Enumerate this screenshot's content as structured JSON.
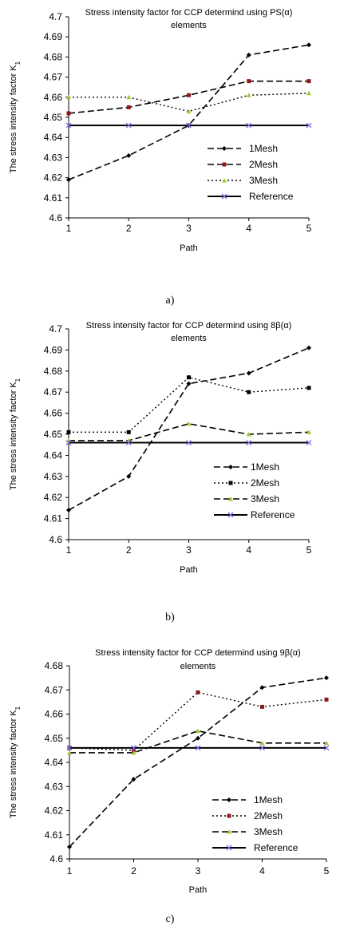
{
  "chart_data": [
    {
      "type": "line",
      "title": [
        "Stress intensity factor for CCP determind using PS(α)",
        "elements"
      ],
      "xlabel": "Path",
      "ylabel": "The stress intensity factor K",
      "ylabel_sub": "1",
      "categories": [
        "1",
        "2",
        "3",
        "4",
        "5"
      ],
      "ylim": [
        4.6,
        4.7
      ],
      "yticks": [
        "4.6",
        "4.61",
        "4.62",
        "4.63",
        "4.64",
        "4.65",
        "4.66",
        "4.67",
        "4.68",
        "4.69",
        "4.7"
      ],
      "legend_position": "bottom-right",
      "grid": false,
      "series": [
        {
          "name": "1Mesh",
          "values": [
            4.619,
            4.631,
            4.646,
            4.681,
            4.686
          ],
          "style": "dashed",
          "width": 1.6,
          "marker": "diamond",
          "color": "#000000",
          "marker_color": "#000000"
        },
        {
          "name": "2Mesh",
          "values": [
            4.652,
            4.655,
            4.661,
            4.668,
            4.668
          ],
          "style": "dashed",
          "width": 1.6,
          "marker": "square",
          "color": "#000000",
          "marker_color": "#8b1a1a"
        },
        {
          "name": "3Mesh",
          "values": [
            4.66,
            4.66,
            4.653,
            4.661,
            4.662
          ],
          "style": "dotted",
          "width": 1.4,
          "marker": "triangle",
          "color": "#000000",
          "marker_color": "#9acd32"
        },
        {
          "name": "Reference",
          "values": [
            4.646,
            4.646,
            4.646,
            4.646,
            4.646
          ],
          "style": "solid",
          "width": 2.0,
          "marker": "x",
          "color": "#000000",
          "marker_color": "#7b68ee"
        }
      ]
    },
    {
      "type": "line",
      "title": [
        "Stress intensity factor for CCP determind using 8β(α)",
        "elements"
      ],
      "xlabel": "Path",
      "ylabel": "The stress intensity factor K",
      "ylabel_sub": "1",
      "categories": [
        "1",
        "2",
        "3",
        "4",
        "5"
      ],
      "ylim": [
        4.6,
        4.7
      ],
      "yticks": [
        "4.6",
        "4.61",
        "4.62",
        "4.63",
        "4.64",
        "4.65",
        "4.66",
        "4.67",
        "4.68",
        "4.69",
        "4.7"
      ],
      "legend_position": "bottom-right",
      "grid": false,
      "series": [
        {
          "name": "1Mesh",
          "values": [
            4.614,
            4.63,
            4.674,
            4.679,
            4.691
          ],
          "style": "dashed",
          "width": 1.6,
          "marker": "diamond",
          "color": "#000000",
          "marker_color": "#000000"
        },
        {
          "name": "2Mesh",
          "values": [
            4.651,
            4.651,
            4.677,
            4.67,
            4.672
          ],
          "style": "dotted",
          "width": 1.4,
          "marker": "square",
          "color": "#000000",
          "marker_color": "#000000"
        },
        {
          "name": "3Mesh",
          "values": [
            4.647,
            4.647,
            4.655,
            4.65,
            4.651
          ],
          "style": "dashed",
          "width": 1.6,
          "marker": "triangle",
          "color": "#000000",
          "marker_color": "#9acd32"
        },
        {
          "name": "Reference",
          "values": [
            4.646,
            4.646,
            4.646,
            4.646,
            4.646
          ],
          "style": "solid",
          "width": 2.0,
          "marker": "x",
          "color": "#000000",
          "marker_color": "#7b68ee"
        }
      ]
    },
    {
      "type": "line",
      "title": [
        "Stress intensity factor for CCP determind using 9β(α)",
        "elements"
      ],
      "xlabel": "Path",
      "ylabel": "The stress intensity factor K",
      "ylabel_sub": "1",
      "categories": [
        "1",
        "2",
        "3",
        "4",
        "5"
      ],
      "ylim": [
        4.6,
        4.68
      ],
      "yticks": [
        "4.6",
        "4.61",
        "4.62",
        "4.63",
        "4.64",
        "4.65",
        "4.66",
        "4.67",
        "4.68"
      ],
      "legend_position": "bottom-right",
      "grid": false,
      "series": [
        {
          "name": "1Mesh",
          "values": [
            4.605,
            4.633,
            4.65,
            4.671,
            4.675
          ],
          "style": "dashed",
          "width": 1.6,
          "marker": "diamond",
          "color": "#000000",
          "marker_color": "#000000"
        },
        {
          "name": "2Mesh",
          "values": [
            4.646,
            4.645,
            4.669,
            4.663,
            4.666
          ],
          "style": "dotted",
          "width": 1.4,
          "marker": "square",
          "color": "#000000",
          "marker_color": "#8b1a1a"
        },
        {
          "name": "3Mesh",
          "values": [
            4.644,
            4.644,
            4.653,
            4.648,
            4.648
          ],
          "style": "dashed",
          "width": 1.6,
          "marker": "triangle",
          "color": "#000000",
          "marker_color": "#9acd32"
        },
        {
          "name": "Reference",
          "values": [
            4.646,
            4.646,
            4.646,
            4.646,
            4.646
          ],
          "style": "solid",
          "width": 2.0,
          "marker": "x",
          "color": "#000000",
          "marker_color": "#7b68ee"
        }
      ]
    }
  ],
  "captions": [
    "a)",
    "b)",
    "c)"
  ]
}
